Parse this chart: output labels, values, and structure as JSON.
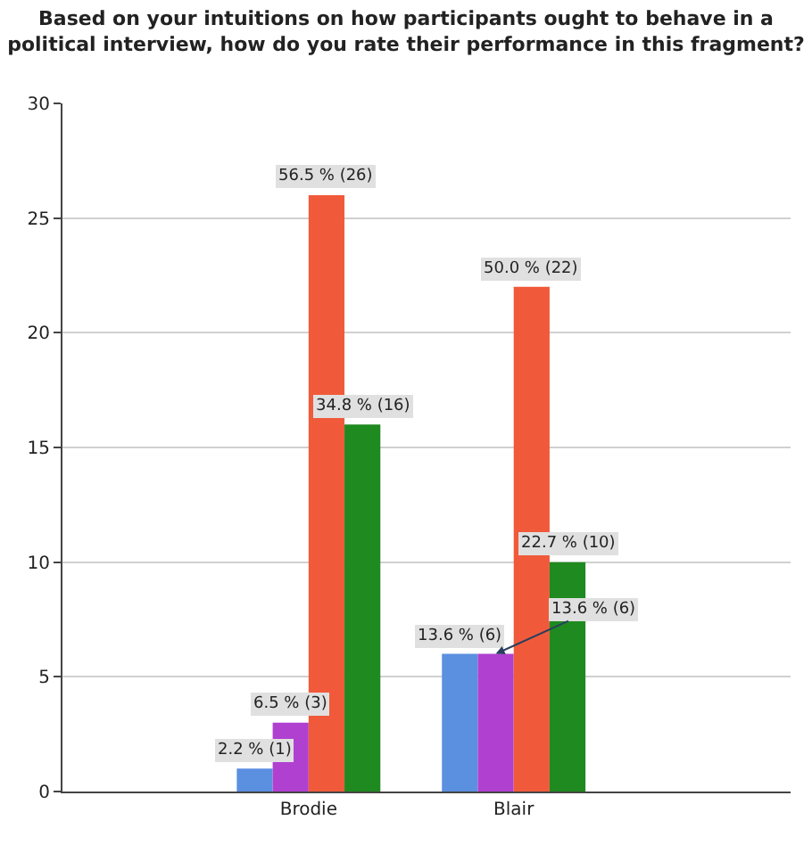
{
  "chart_data": {
    "type": "bar",
    "title": "Based on your intuitions on how participants ought to behave in a political interview, how do you rate their performance in this fragment?",
    "categories": [
      "Brodie",
      "Blair"
    ],
    "series": [
      {
        "color": "#5b8fe0",
        "values": [
          1,
          6
        ],
        "value_labels": [
          "2.2 % (1)",
          "13.6 % (6)"
        ]
      },
      {
        "color": "#b040d0",
        "values": [
          3,
          6
        ],
        "value_labels": [
          "6.5 % (3)",
          "13.6 % (6)"
        ]
      },
      {
        "color": "#f05a3a",
        "values": [
          26,
          22
        ],
        "value_labels": [
          "56.5 % (26)",
          "50.0 % (22)"
        ]
      },
      {
        "color": "#1f8a1f",
        "values": [
          16,
          10
        ],
        "value_labels": [
          "34.8 % (16)",
          "22.7 % (10)"
        ]
      }
    ],
    "ylim": [
      0,
      30
    ],
    "yticks": [
      0,
      5,
      10,
      15,
      20,
      25,
      30
    ],
    "grid": "y"
  }
}
